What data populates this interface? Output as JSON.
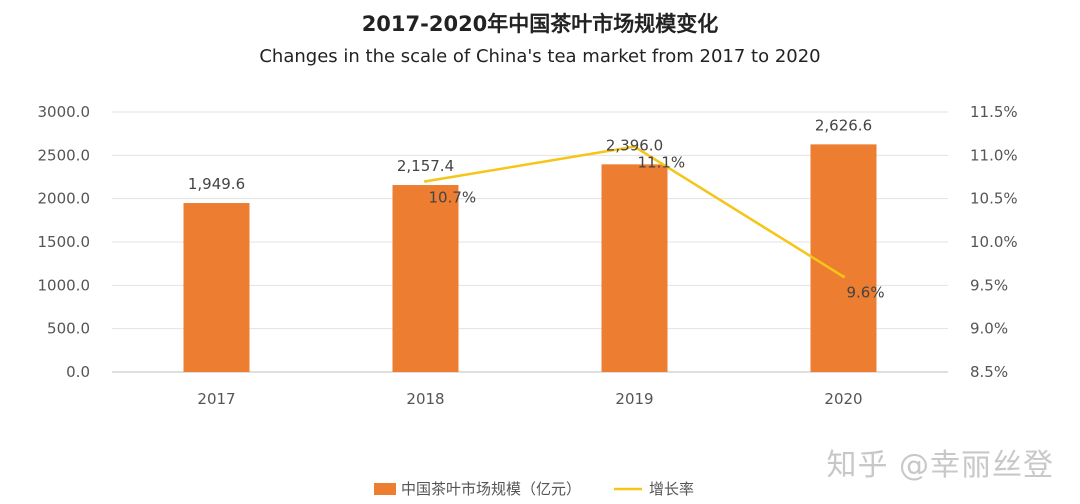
{
  "title": "2017-2020年中国茶叶市场规模变化",
  "subtitle": "Changes in the scale of China's tea market from 2017 to 2020",
  "watermark": "知乎 @幸丽丝登",
  "chart_data": {
    "type": "bar",
    "categories": [
      "2017",
      "2018",
      "2019",
      "2020"
    ],
    "series": [
      {
        "name": "中国茶叶市场规模（亿元）",
        "type": "bar",
        "axis": "left",
        "color": "#ED7D31",
        "values": [
          1949.6,
          2157.4,
          2396.0,
          2626.6
        ],
        "labels": [
          "1,949.6",
          "2,157.4",
          "2,396.0",
          "2,626.6"
        ]
      },
      {
        "name": "增长率",
        "type": "line",
        "axis": "right",
        "color": "#F5C518",
        "values": [
          null,
          10.7,
          11.1,
          9.6
        ],
        "labels": [
          null,
          "10.7%",
          "11.1%",
          "9.6%"
        ]
      }
    ],
    "y_left": {
      "ylim": [
        0,
        3000
      ],
      "ticks": [
        "0.0",
        "500.0",
        "1000.0",
        "1500.0",
        "2000.0",
        "2500.0",
        "3000.0"
      ]
    },
    "y_right": {
      "ylim": [
        8.5,
        11.5
      ],
      "ticks": [
        "8.5%",
        "9.0%",
        "9.5%",
        "10.0%",
        "10.5%",
        "11.0%",
        "11.5%"
      ]
    },
    "grid": true,
    "legend_position": "bottom"
  }
}
